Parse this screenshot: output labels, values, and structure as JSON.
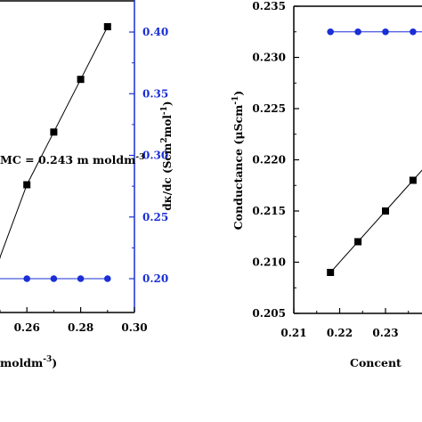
{
  "chart_data": [
    {
      "type": "line",
      "xlim": [
        0.25,
        0.3
      ],
      "ylim": [
        0.0,
        0.43
      ],
      "y2lim": [
        0.18,
        0.43
      ],
      "xticks": [
        "0.26",
        "0.28",
        "0.30"
      ],
      "x_tick_values": [
        0.26,
        0.28,
        0.3
      ],
      "xlabel_fragment": "moldm",
      "xlabel_exp": "-3",
      "xlabel_close": ")",
      "y2ticks": [
        "0.20",
        "0.25",
        "0.30",
        "0.35",
        "0.40"
      ],
      "y2_tick_values": [
        0.2,
        0.25,
        0.3,
        0.35,
        0.4
      ],
      "y2label": {
        "prefix": "dκ/dc (Scm",
        "sup1": "2",
        "mid": "mol",
        "sup2": "-1",
        "suffix": ")"
      },
      "annotation": {
        "text": "MC = 0.243 m moldm",
        "sup": "-3"
      },
      "series": [
        {
          "color": "#000000",
          "marker": "square",
          "axis": "left",
          "x": [
            0.2503,
            0.26,
            0.27,
            0.28,
            0.29
          ],
          "y": [
            0.34,
            0.36,
            0.375,
            0.39,
            0.405
          ]
        },
        {
          "color": "#1a2fd6",
          "marker": "circle",
          "axis": "right",
          "x": [
            0.2505,
            0.26,
            0.27,
            0.28,
            0.29
          ],
          "y": [
            0.2,
            0.2,
            0.2,
            0.2,
            0.2
          ]
        }
      ],
      "left_series_y_range": [
        0.01,
        0.45
      ],
      "grid": false
    },
    {
      "type": "line",
      "xlim": [
        0.21,
        0.2495
      ],
      "ylim": [
        0.205,
        0.235
      ],
      "xticks": [
        "0.21",
        "0.22",
        "0.23"
      ],
      "x_tick_values": [
        0.21,
        0.22,
        0.23
      ],
      "yticks": [
        "0.205",
        "0.210",
        "0.215",
        "0.220",
        "0.225",
        "0.230",
        "0.235"
      ],
      "y_tick_values": [
        0.205,
        0.21,
        0.215,
        0.22,
        0.225,
        0.23,
        0.235
      ],
      "ylabel": {
        "prefix": "Conductance (μScm",
        "sup": "-1",
        "suffix": ")"
      },
      "xlabel_fragment": "Concent",
      "series": [
        {
          "color": "#000000",
          "marker": "square",
          "axis": "left",
          "x": [
            0.218,
            0.224,
            0.23,
            0.236,
            0.2495
          ],
          "y": [
            0.209,
            0.212,
            0.215,
            0.218,
            0.2247
          ]
        },
        {
          "color": "#1a2fd6",
          "marker": "circle",
          "axis": "left",
          "x": [
            0.218,
            0.224,
            0.23,
            0.236,
            0.24,
            0.2445
          ],
          "y": [
            0.2325,
            0.2325,
            0.2325,
            0.2325,
            0.2325,
            0.228
          ]
        }
      ],
      "grid": false
    }
  ]
}
